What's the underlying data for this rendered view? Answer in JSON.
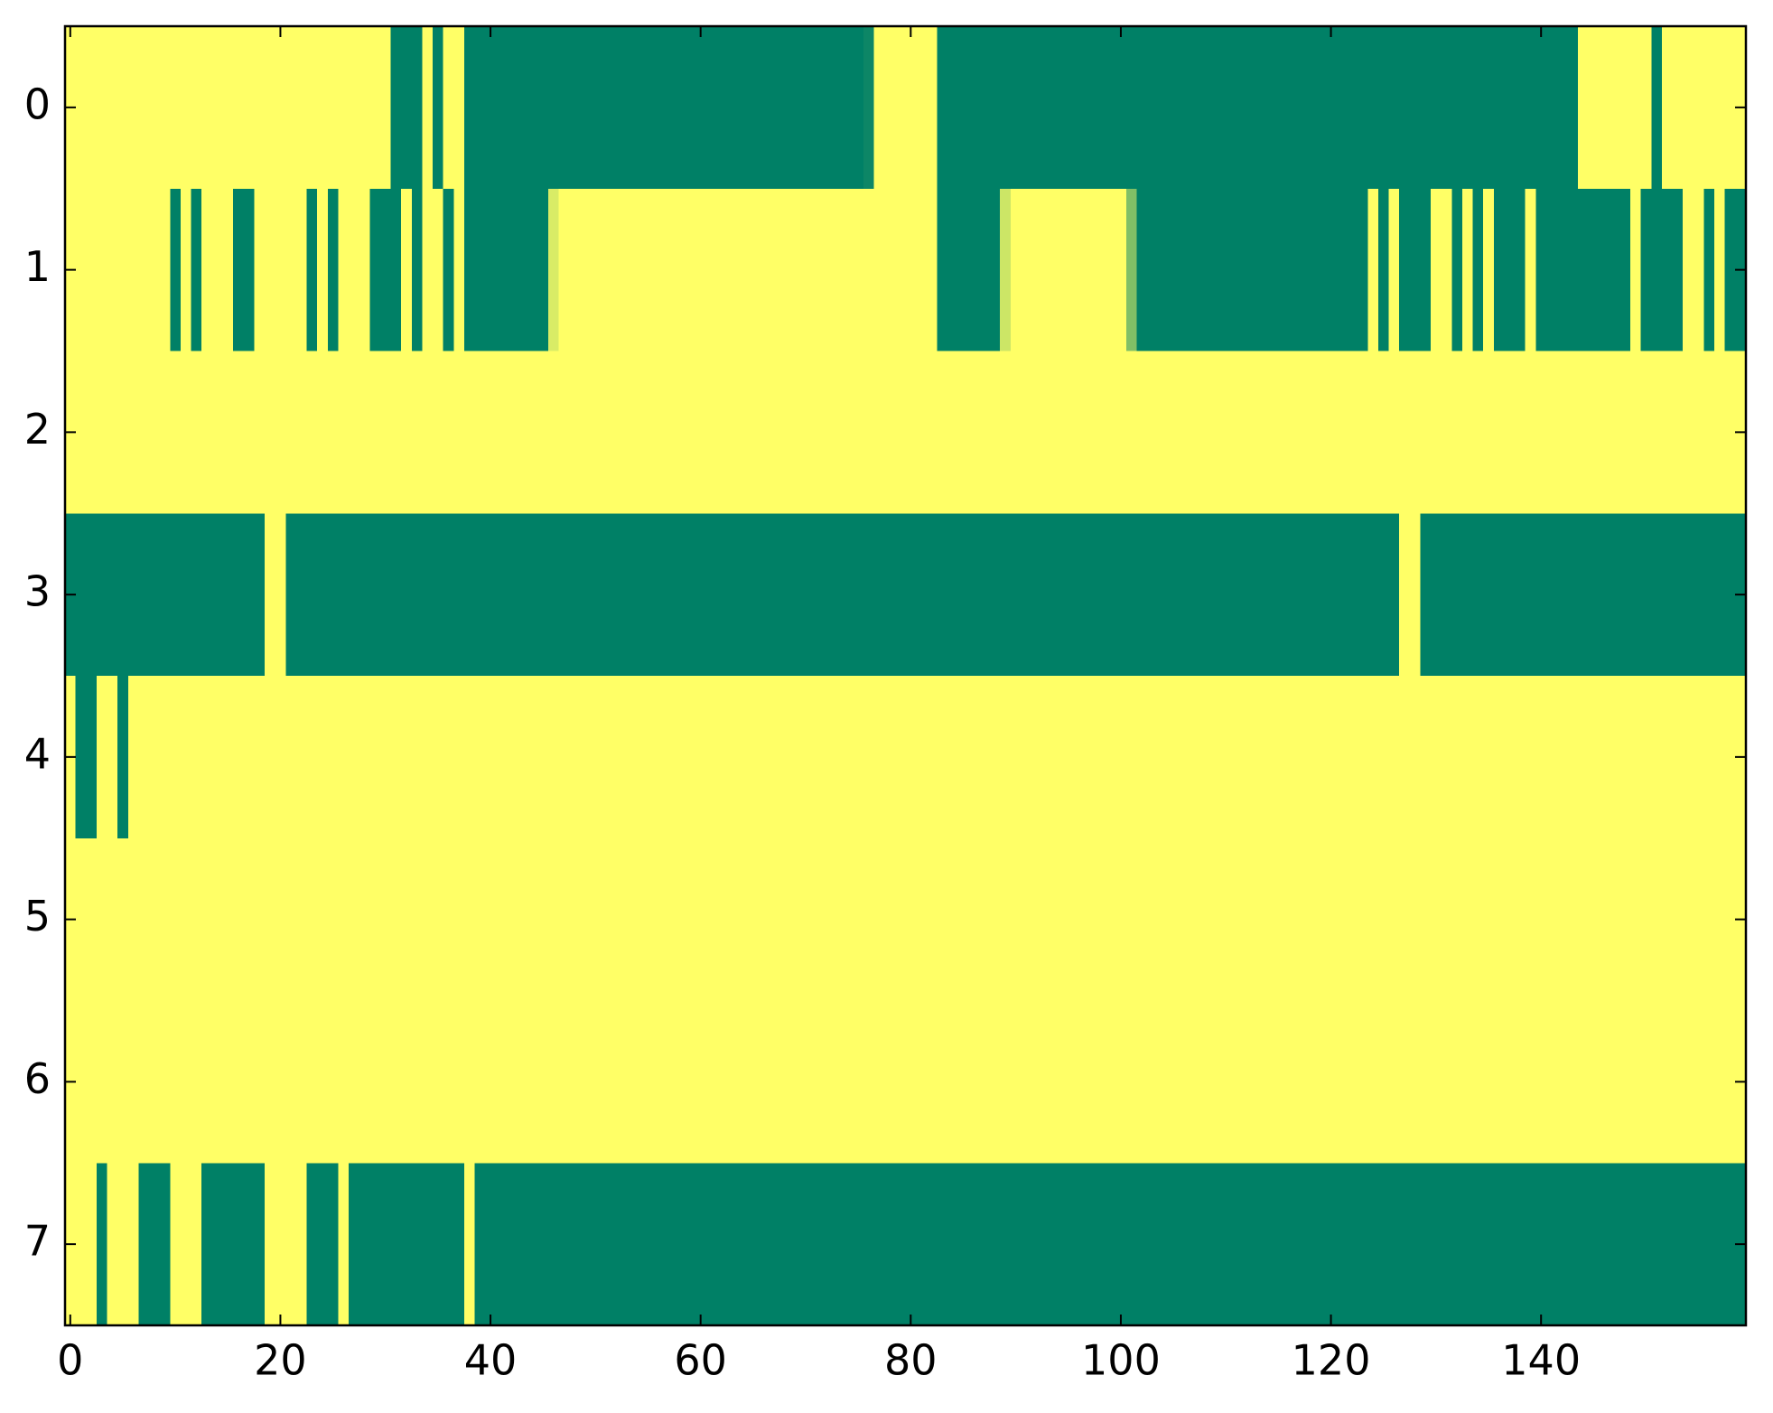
{
  "chart_data": {
    "type": "heatmap",
    "colormap": "summer",
    "values": [
      [
        1,
        1,
        1,
        1,
        1,
        1,
        1,
        1,
        1,
        1,
        1,
        1,
        1,
        1,
        1,
        1,
        1,
        1,
        1,
        1,
        1,
        1,
        1,
        1,
        1,
        1,
        1,
        1,
        1,
        1,
        1,
        0,
        0,
        0,
        1,
        0,
        1,
        1,
        0,
        0,
        0,
        0,
        0,
        0,
        0,
        0,
        0,
        0,
        0,
        0,
        0,
        0,
        0,
        0,
        0,
        0,
        0,
        0,
        0,
        0,
        0,
        0,
        0,
        0,
        0,
        0,
        0,
        0,
        0,
        0,
        0,
        0,
        0,
        0,
        0,
        0,
        0.05,
        1,
        1,
        1,
        1,
        1,
        1,
        0,
        0,
        0,
        0,
        0,
        0,
        0,
        0,
        0,
        0,
        0,
        0,
        0,
        0,
        0,
        0,
        0,
        0,
        0,
        0,
        0,
        0,
        0,
        0,
        0,
        0,
        0,
        0,
        0,
        0,
        0,
        0,
        0,
        0,
        0,
        0,
        0,
        0,
        0,
        0,
        0,
        0,
        0,
        0,
        0,
        0,
        0,
        0,
        0,
        0,
        0,
        0,
        0,
        0,
        0,
        0,
        0,
        0,
        0,
        0,
        0,
        1,
        1,
        1,
        1,
        1,
        1,
        1,
        0,
        1,
        1,
        1,
        1,
        1,
        1,
        1,
        1
      ],
      [
        1,
        1,
        1,
        1,
        1,
        1,
        1,
        1,
        1,
        1,
        0,
        1,
        0,
        1,
        1,
        1,
        0,
        0,
        1,
        1,
        1,
        1,
        1,
        0,
        1,
        0,
        1,
        1,
        1,
        0,
        0,
        0,
        1,
        0,
        1,
        1,
        0,
        1,
        0,
        0,
        0,
        0,
        0,
        0,
        0,
        0,
        0.85,
        1,
        1,
        1,
        1,
        1,
        1,
        1,
        1,
        1,
        1,
        1,
        1,
        1,
        1,
        1,
        1,
        1,
        1,
        1,
        1,
        1,
        1,
        1,
        1,
        1,
        1,
        1,
        1,
        1,
        1,
        1,
        1,
        1,
        1,
        1,
        1,
        0,
        0,
        0,
        0,
        0,
        0,
        0.8,
        1,
        1,
        1,
        1,
        1,
        1,
        1,
        1,
        1,
        1,
        1,
        0.5,
        0,
        0,
        0,
        0,
        0,
        0,
        0,
        0,
        0,
        0,
        0,
        0,
        0,
        0,
        0,
        0,
        0,
        0,
        0,
        0,
        0,
        0,
        1,
        0,
        1,
        0,
        0,
        0,
        1,
        1,
        0,
        1,
        0,
        1,
        0,
        0,
        0,
        1,
        0,
        0,
        0,
        0,
        0,
        0,
        0,
        0,
        0,
        1,
        0,
        0,
        0,
        0,
        1,
        1,
        0,
        1,
        0,
        0
      ],
      [
        1,
        1,
        1,
        1,
        1,
        1,
        1,
        1,
        1,
        1,
        1,
        1,
        1,
        1,
        1,
        1,
        1,
        1,
        1,
        1,
        1,
        1,
        1,
        1,
        1,
        1,
        1,
        1,
        1,
        1,
        1,
        1,
        1,
        1,
        1,
        1,
        1,
        1,
        1,
        1,
        1,
        1,
        1,
        1,
        1,
        1,
        1,
        1,
        1,
        1,
        1,
        1,
        1,
        1,
        1,
        1,
        1,
        1,
        1,
        1,
        1,
        1,
        1,
        1,
        1,
        1,
        1,
        1,
        1,
        1,
        1,
        1,
        1,
        1,
        1,
        1,
        1,
        1,
        1,
        1,
        1,
        1,
        1,
        1,
        1,
        1,
        1,
        1,
        1,
        1,
        1,
        1,
        1,
        1,
        1,
        1,
        1,
        1,
        1,
        1,
        1,
        1,
        1,
        1,
        1,
        1,
        1,
        1,
        1,
        1,
        1,
        1,
        1,
        1,
        1,
        1,
        1,
        1,
        1,
        1,
        1,
        1,
        1,
        1,
        1,
        1,
        1,
        1,
        1,
        1,
        1,
        1,
        1,
        1,
        1,
        1,
        1,
        1,
        1,
        1,
        1,
        1,
        1,
        1,
        1,
        1,
        1,
        1,
        1,
        1,
        1,
        1,
        1,
        1,
        1,
        1,
        1,
        1,
        1,
        1
      ],
      [
        0,
        0,
        0,
        0,
        0,
        0,
        0,
        0,
        0,
        0,
        0,
        0,
        0,
        0,
        0,
        0,
        0,
        0,
        0,
        1,
        1,
        0,
        0,
        0,
        0,
        0,
        0,
        0,
        0,
        0,
        0,
        0,
        0,
        0,
        0,
        0,
        0,
        0,
        0,
        0,
        0,
        0,
        0,
        0,
        0,
        0,
        0,
        0,
        0,
        0,
        0,
        0,
        0,
        0,
        0,
        0,
        0,
        0,
        0,
        0,
        0,
        0,
        0,
        0,
        0,
        0,
        0,
        0,
        0,
        0,
        0,
        0,
        0,
        0,
        0,
        0,
        0,
        0,
        0,
        0,
        0,
        0,
        0,
        0,
        0,
        0,
        0,
        0,
        0,
        0,
        0,
        0,
        0,
        0,
        0,
        0,
        0,
        0,
        0,
        0,
        0,
        0,
        0,
        0,
        0,
        0,
        0,
        0,
        0,
        0,
        0,
        0,
        0,
        0,
        0,
        0,
        0,
        0,
        0,
        0,
        0,
        0,
        0,
        0,
        0,
        0,
        0,
        1,
        1,
        0,
        0,
        0,
        0,
        0,
        0,
        0,
        0,
        0,
        0,
        0,
        0,
        0,
        0,
        0,
        0,
        0,
        0,
        0,
        0,
        0,
        0,
        0,
        0,
        0,
        0,
        0,
        0,
        0,
        0,
        0
      ],
      [
        1,
        0,
        0,
        1,
        1,
        0,
        1,
        1,
        1,
        1,
        1,
        1,
        1,
        1,
        1,
        1,
        1,
        1,
        1,
        1,
        1,
        1,
        1,
        1,
        1,
        1,
        1,
        1,
        1,
        1,
        1,
        1,
        1,
        1,
        1,
        1,
        1,
        1,
        1,
        1,
        1,
        1,
        1,
        1,
        1,
        1,
        1,
        1,
        1,
        1,
        1,
        1,
        1,
        1,
        1,
        1,
        1,
        1,
        1,
        1,
        1,
        1,
        1,
        1,
        1,
        1,
        1,
        1,
        1,
        1,
        1,
        1,
        1,
        1,
        1,
        1,
        1,
        1,
        1,
        1,
        1,
        1,
        1,
        1,
        1,
        1,
        1,
        1,
        1,
        1,
        1,
        1,
        1,
        1,
        1,
        1,
        1,
        1,
        1,
        1,
        1,
        1,
        1,
        1,
        1,
        1,
        1,
        1,
        1,
        1,
        1,
        1,
        1,
        1,
        1,
        1,
        1,
        1,
        1,
        1,
        1,
        1,
        1,
        1,
        1,
        1,
        1,
        1,
        1,
        1,
        1,
        1,
        1,
        1,
        1,
        1,
        1,
        1,
        1,
        1,
        1,
        1,
        1,
        1,
        1,
        1,
        1,
        1,
        1,
        1,
        1,
        1,
        1,
        1,
        1,
        1,
        1,
        1,
        1,
        1
      ],
      [
        1,
        1,
        1,
        1,
        1,
        1,
        1,
        1,
        1,
        1,
        1,
        1,
        1,
        1,
        1,
        1,
        1,
        1,
        1,
        1,
        1,
        1,
        1,
        1,
        1,
        1,
        1,
        1,
        1,
        1,
        1,
        1,
        1,
        1,
        1,
        1,
        1,
        1,
        1,
        1,
        1,
        1,
        1,
        1,
        1,
        1,
        1,
        1,
        1,
        1,
        1,
        1,
        1,
        1,
        1,
        1,
        1,
        1,
        1,
        1,
        1,
        1,
        1,
        1,
        1,
        1,
        1,
        1,
        1,
        1,
        1,
        1,
        1,
        1,
        1,
        1,
        1,
        1,
        1,
        1,
        1,
        1,
        1,
        1,
        1,
        1,
        1,
        1,
        1,
        1,
        1,
        1,
        1,
        1,
        1,
        1,
        1,
        1,
        1,
        1,
        1,
        1,
        1,
        1,
        1,
        1,
        1,
        1,
        1,
        1,
        1,
        1,
        1,
        1,
        1,
        1,
        1,
        1,
        1,
        1,
        1,
        1,
        1,
        1,
        1,
        1,
        1,
        1,
        1,
        1,
        1,
        1,
        1,
        1,
        1,
        1,
        1,
        1,
        1,
        1,
        1,
        1,
        1,
        1,
        1,
        1,
        1,
        1,
        1,
        1,
        1,
        1,
        1,
        1,
        1,
        1,
        1,
        1,
        1,
        1
      ],
      [
        1,
        1,
        1,
        1,
        1,
        1,
        1,
        1,
        1,
        1,
        1,
        1,
        1,
        1,
        1,
        1,
        1,
        1,
        1,
        1,
        1,
        1,
        1,
        1,
        1,
        1,
        1,
        1,
        1,
        1,
        1,
        1,
        1,
        1,
        1,
        1,
        1,
        1,
        1,
        1,
        1,
        1,
        1,
        1,
        1,
        1,
        1,
        1,
        1,
        1,
        1,
        1,
        1,
        1,
        1,
        1,
        1,
        1,
        1,
        1,
        1,
        1,
        1,
        1,
        1,
        1,
        1,
        1,
        1,
        1,
        1,
        1,
        1,
        1,
        1,
        1,
        1,
        1,
        1,
        1,
        1,
        1,
        1,
        1,
        1,
        1,
        1,
        1,
        1,
        1,
        1,
        1,
        1,
        1,
        1,
        1,
        1,
        1,
        1,
        1,
        1,
        1,
        1,
        1,
        1,
        1,
        1,
        1,
        1,
        1,
        1,
        1,
        1,
        1,
        1,
        1,
        1,
        1,
        1,
        1,
        1,
        1,
        1,
        1,
        1,
        1,
        1,
        1,
        1,
        1,
        1,
        1,
        1,
        1,
        1,
        1,
        1,
        1,
        1,
        1,
        1,
        1,
        1,
        1,
        1,
        1,
        1,
        1,
        1,
        1,
        1,
        1,
        1,
        1,
        1,
        1,
        1,
        1,
        1,
        1
      ],
      [
        1,
        1,
        1,
        0,
        1,
        1,
        1,
        0,
        0,
        0,
        1,
        1,
        1,
        0,
        0,
        0,
        0,
        0,
        0,
        1,
        1,
        1,
        1,
        0,
        0,
        0,
        1,
        0,
        0,
        0,
        0,
        0,
        0,
        0,
        0,
        0,
        0,
        0,
        1,
        0,
        0,
        0,
        0,
        0,
        0,
        0,
        0,
        0,
        0,
        0,
        0,
        0,
        0,
        0,
        0,
        0,
        0,
        0,
        0,
        0,
        0,
        0,
        0,
        0,
        0,
        0,
        0,
        0,
        0,
        0,
        0,
        0,
        0,
        0,
        0,
        0,
        0,
        0,
        0,
        0,
        0,
        0,
        0,
        0,
        0,
        0,
        0,
        0,
        0,
        0,
        0,
        0,
        0,
        0,
        0,
        0,
        0,
        0,
        0,
        0,
        0,
        0,
        0,
        0,
        0,
        0,
        0,
        0,
        0,
        0,
        0,
        0,
        0,
        0,
        0,
        0,
        0,
        0,
        0,
        0,
        0,
        0,
        0,
        0,
        0,
        0,
        0,
        0,
        0,
        0,
        0,
        0,
        0,
        0,
        0,
        0,
        0,
        0,
        0,
        0,
        0,
        0,
        0,
        0,
        0,
        0,
        0,
        0,
        0,
        0,
        0,
        0,
        0,
        0,
        0,
        0,
        0,
        0,
        0,
        0
      ]
    ],
    "xlim": [
      -0.5,
      159.5
    ],
    "ylim": [
      7.5,
      -0.5
    ],
    "xticks": [
      0,
      20,
      40,
      60,
      80,
      100,
      120,
      140
    ],
    "yticks": [
      0,
      1,
      2,
      3,
      4,
      5,
      6,
      7
    ]
  }
}
